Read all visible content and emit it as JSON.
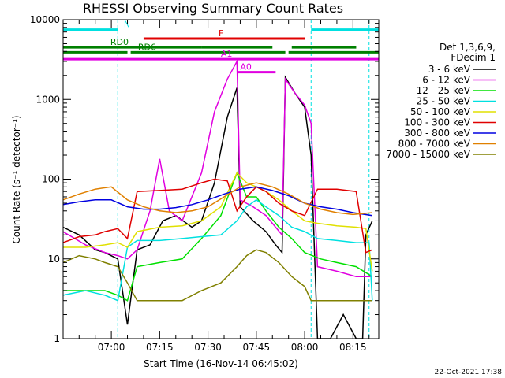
{
  "chart_data": {
    "type": "line",
    "title": "RHESSI Observing Summary Count Rates",
    "xlabel": "Start Time (16-Nov-14 06:45:02)",
    "ylabel": "Count Rate (s⁻¹ detector⁻¹)",
    "y_scale": "log",
    "ylim": [
      1,
      10000
    ],
    "xlim": [
      "06:45:02",
      "08:23:00"
    ],
    "x_ticks": [
      "07:00",
      "07:15",
      "07:30",
      "07:45",
      "08:00",
      "08:15"
    ],
    "y_ticks": [
      "1",
      "10",
      "100",
      "1000",
      "10000"
    ],
    "grid": false,
    "legend_header": [
      "Det 1,3,6,9,",
      "FDecim 1"
    ],
    "legend_position": "right",
    "series": [
      {
        "name": "3 - 6 keV",
        "color": "#000000",
        "x": [
          "06:45",
          "06:50",
          "06:55",
          "06:58",
          "07:02",
          "07:05",
          "07:08",
          "07:12",
          "07:16",
          "07:20",
          "07:25",
          "07:28",
          "07:32",
          "07:36",
          "07:39",
          "07:40",
          "07:44",
          "07:48",
          "07:51",
          "07:53",
          "07:54",
          "07:57",
          "08:00",
          "08:02",
          "08:04",
          "08:08",
          "08:12",
          "08:16",
          "08:18",
          "08:19",
          "08:21"
        ],
        "y": [
          25,
          20,
          13,
          12,
          10,
          1.5,
          13,
          15,
          30,
          35,
          25,
          30,
          90,
          600,
          1400,
          45,
          30,
          22,
          15,
          12,
          1900,
          1200,
          800,
          200,
          1,
          1,
          2,
          1,
          1,
          20,
          30
        ]
      },
      {
        "name": "6 - 12 keV",
        "color": "#e000e0",
        "x": [
          "06:45",
          "06:52",
          "06:58",
          "07:02",
          "07:05",
          "07:08",
          "07:12",
          "07:15",
          "07:18",
          "07:22",
          "07:28",
          "07:32",
          "07:36",
          "07:39",
          "07:40",
          "07:44",
          "07:48",
          "07:51",
          "07:53",
          "07:54",
          "07:57",
          "08:00",
          "08:02",
          "08:04",
          "08:10",
          "08:16",
          "08:19",
          "08:21"
        ],
        "y": [
          22,
          15,
          12,
          11,
          10,
          13,
          40,
          180,
          40,
          30,
          120,
          700,
          1800,
          3000,
          55,
          45,
          35,
          25,
          20,
          1800,
          1200,
          850,
          500,
          8,
          7,
          6,
          6,
          6
        ]
      },
      {
        "name": "12 - 25 keV",
        "color": "#00e000",
        "x": [
          "06:45",
          "06:52",
          "06:58",
          "07:02",
          "07:05",
          "07:08",
          "07:15",
          "07:22",
          "07:28",
          "07:34",
          "07:39",
          "07:42",
          "07:45",
          "07:48",
          "07:52",
          "07:56",
          "08:00",
          "08:05",
          "08:10",
          "08:16",
          "08:21"
        ],
        "y": [
          4,
          4,
          4,
          3.5,
          3,
          8,
          9,
          10,
          18,
          35,
          120,
          60,
          60,
          40,
          25,
          18,
          12,
          10,
          9,
          8,
          6
        ]
      },
      {
        "name": "25 - 50 keV",
        "color": "#00e0e0",
        "x": [
          "06:45",
          "06:52",
          "06:58",
          "07:02",
          "07:05",
          "07:08",
          "07:15",
          "07:22",
          "07:28",
          "07:34",
          "07:39",
          "07:42",
          "07:45",
          "07:48",
          "07:52",
          "07:56",
          "08:00",
          "08:04",
          "08:10",
          "08:16",
          "08:20",
          "08:21"
        ],
        "y": [
          3.5,
          4,
          3.5,
          3,
          14,
          17,
          17,
          18,
          19,
          20,
          30,
          45,
          55,
          45,
          35,
          25,
          22,
          18,
          17,
          16,
          16,
          3
        ]
      },
      {
        "name": "50 - 100 keV",
        "color": "#e0e000",
        "x": [
          "06:45",
          "06:52",
          "06:58",
          "07:02",
          "07:05",
          "07:08",
          "07:15",
          "07:22",
          "07:28",
          "07:34",
          "07:39",
          "07:42",
          "07:45",
          "07:48",
          "07:52",
          "07:56",
          "08:00",
          "08:04",
          "08:10",
          "08:16",
          "08:19",
          "08:21"
        ],
        "y": [
          14,
          14,
          15,
          16,
          14,
          22,
          25,
          26,
          30,
          45,
          120,
          90,
          80,
          70,
          55,
          40,
          30,
          28,
          26,
          25,
          24,
          7
        ]
      },
      {
        "name": "100 - 300 keV",
        "color": "#e00000",
        "x": [
          "06:45",
          "06:50",
          "06:55",
          "06:58",
          "07:02",
          "07:05",
          "07:08",
          "07:15",
          "07:22",
          "07:28",
          "07:32",
          "07:36",
          "07:39",
          "07:42",
          "07:45",
          "07:48",
          "07:52",
          "07:56",
          "08:00",
          "08:04",
          "08:10",
          "08:16",
          "08:19",
          "08:21"
        ],
        "y": [
          16,
          19,
          20,
          22,
          24,
          18,
          70,
          72,
          75,
          90,
          100,
          95,
          40,
          60,
          80,
          70,
          50,
          40,
          35,
          75,
          75,
          70,
          12,
          13
        ]
      },
      {
        "name": "300 - 800 keV",
        "color": "#0000e0",
        "x": [
          "06:45",
          "06:50",
          "06:55",
          "07:00",
          "07:05",
          "07:10",
          "07:15",
          "07:20",
          "07:25",
          "07:30",
          "07:35",
          "07:40",
          "07:45",
          "07:50",
          "07:55",
          "08:00",
          "08:05",
          "08:10",
          "08:15",
          "08:21"
        ],
        "y": [
          48,
          52,
          55,
          55,
          45,
          42,
          42,
          44,
          48,
          55,
          65,
          75,
          80,
          72,
          62,
          50,
          45,
          42,
          38,
          35
        ]
      },
      {
        "name": "800 - 7000 keV",
        "color": "#e08000",
        "x": [
          "06:45",
          "06:50",
          "06:55",
          "07:00",
          "07:05",
          "07:10",
          "07:15",
          "07:20",
          "07:25",
          "07:30",
          "07:35",
          "07:40",
          "07:45",
          "07:50",
          "07:55",
          "08:00",
          "08:05",
          "08:10",
          "08:15",
          "08:21"
        ],
        "y": [
          55,
          65,
          75,
          80,
          55,
          45,
          40,
          38,
          40,
          45,
          60,
          80,
          90,
          80,
          65,
          50,
          42,
          38,
          36,
          38
        ]
      },
      {
        "name": "7000 - 15000 keV",
        "color": "#808000",
        "x": [
          "06:45",
          "06:50",
          "06:55",
          "06:58",
          "07:02",
          "07:05",
          "07:08",
          "07:15",
          "07:22",
          "07:28",
          "07:34",
          "07:39",
          "07:42",
          "07:45",
          "07:48",
          "07:52",
          "07:56",
          "08:00",
          "08:02",
          "08:05",
          "08:10",
          "08:16",
          "08:21"
        ],
        "y": [
          9,
          11,
          10,
          9,
          8,
          5,
          3,
          3,
          3,
          4,
          5,
          8,
          11,
          13,
          12,
          9,
          6,
          4.5,
          3,
          3,
          3,
          3,
          3
        ]
      }
    ],
    "status_bars": [
      {
        "label": "N",
        "color": "#00e0e0",
        "segments": [
          [
            "06:45",
            "07:02"
          ],
          [
            "08:02",
            "08:23"
          ]
        ],
        "level": 7500
      },
      {
        "label": "F",
        "color": "#e00000",
        "segments": [
          [
            "07:10",
            "08:00"
          ]
        ],
        "level": 5800
      },
      {
        "label": "RD0",
        "color": "#008000",
        "segments": [
          [
            "06:45",
            "07:28"
          ],
          [
            "07:28",
            "07:50"
          ],
          [
            "07:56",
            "08:16"
          ]
        ],
        "level": 4500
      },
      {
        "label": "RD6",
        "color": "#008000",
        "segments": [
          [
            "06:45",
            "07:05"
          ],
          [
            "07:06",
            "07:54"
          ],
          [
            "07:55",
            "08:23"
          ]
        ],
        "level": 3900
      },
      {
        "label": "A1",
        "color": "#e000e0",
        "segments": [
          [
            "06:45",
            "08:23"
          ]
        ],
        "level": 3200
      },
      {
        "label": "A0",
        "color": "#e000e0",
        "segments": [
          [
            "07:39",
            "07:51"
          ]
        ],
        "level": 2200
      }
    ],
    "event_lines": [
      {
        "time": "07:02",
        "color": "#00e0e0"
      },
      {
        "time": "08:02",
        "color": "#00e0e0"
      },
      {
        "time": "08:20",
        "color": "#00e0e0"
      }
    ]
  },
  "footer": {
    "timestamp": "22-Oct-2021 17:38"
  }
}
